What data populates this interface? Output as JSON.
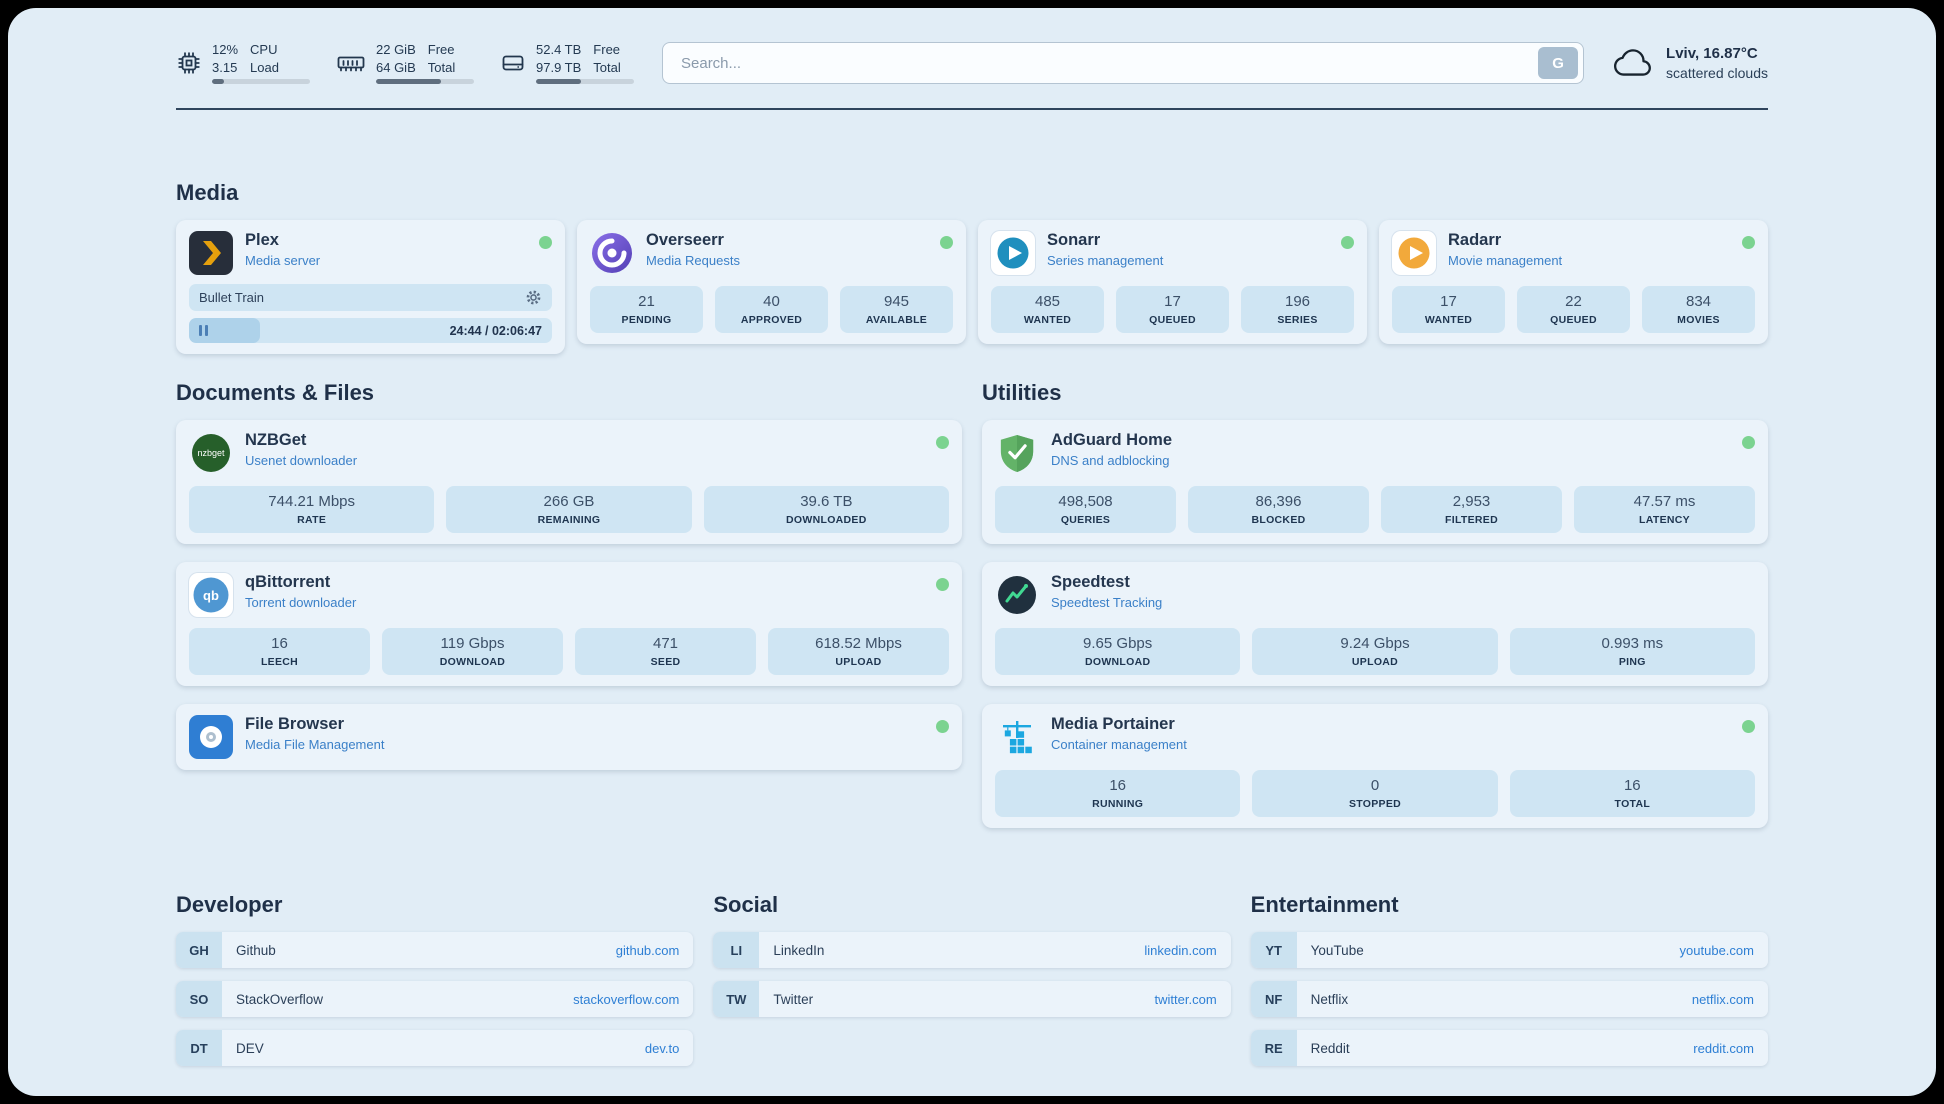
{
  "header": {
    "cpu": {
      "value": "12%",
      "load": "3.15",
      "label_top": "CPU",
      "label_bottom": "Load",
      "percent": 12
    },
    "memory": {
      "free": "22 GiB",
      "total": "64 GiB",
      "label_top": "Free",
      "label_bottom": "Total",
      "percent": 66
    },
    "disk": {
      "free": "52.4 TB",
      "total": "97.9 TB",
      "label_top": "Free",
      "label_bottom": "Total",
      "percent": 46
    },
    "search": {
      "placeholder": "Search...",
      "button_label": "G"
    },
    "weather": {
      "location": "Lviv, 16.87°C",
      "condition": "scattered clouds"
    }
  },
  "sections": {
    "media": {
      "title": "Media",
      "plex": {
        "name": "Plex",
        "subtitle": "Media server",
        "now_playing": "Bullet Train",
        "time": "24:44 / 02:06:47",
        "progress_percent": 19.5
      },
      "overseerr": {
        "name": "Overseerr",
        "subtitle": "Media Requests",
        "stats": [
          {
            "value": "21",
            "label": "PENDING"
          },
          {
            "value": "40",
            "label": "APPROVED"
          },
          {
            "value": "945",
            "label": "AVAILABLE"
          }
        ]
      },
      "sonarr": {
        "name": "Sonarr",
        "subtitle": "Series management",
        "stats": [
          {
            "value": "485",
            "label": "WANTED"
          },
          {
            "value": "17",
            "label": "QUEUED"
          },
          {
            "value": "196",
            "label": "SERIES"
          }
        ]
      },
      "radarr": {
        "name": "Radarr",
        "subtitle": "Movie management",
        "stats": [
          {
            "value": "17",
            "label": "WANTED"
          },
          {
            "value": "22",
            "label": "QUEUED"
          },
          {
            "value": "834",
            "label": "MOVIES"
          }
        ]
      }
    },
    "documents": {
      "title": "Documents & Files",
      "nzbget": {
        "name": "NZBGet",
        "subtitle": "Usenet downloader",
        "stats": [
          {
            "value": "744.21 Mbps",
            "label": "RATE"
          },
          {
            "value": "266 GB",
            "label": "REMAINING"
          },
          {
            "value": "39.6 TB",
            "label": "DOWNLOADED"
          }
        ]
      },
      "qbittorrent": {
        "name": "qBittorrent",
        "subtitle": "Torrent downloader",
        "stats": [
          {
            "value": "16",
            "label": "LEECH"
          },
          {
            "value": "119 Gbps",
            "label": "DOWNLOAD"
          },
          {
            "value": "471",
            "label": "SEED"
          },
          {
            "value": "618.52 Mbps",
            "label": "UPLOAD"
          }
        ]
      },
      "filebrowser": {
        "name": "File Browser",
        "subtitle": "Media File Management"
      }
    },
    "utilities": {
      "title": "Utilities",
      "adguard": {
        "name": "AdGuard Home",
        "subtitle": "DNS and adblocking",
        "stats": [
          {
            "value": "498,508",
            "label": "QUERIES"
          },
          {
            "value": "86,396",
            "label": "BLOCKED"
          },
          {
            "value": "2,953",
            "label": "FILTERED"
          },
          {
            "value": "47.57 ms",
            "label": "LATENCY"
          }
        ]
      },
      "speedtest": {
        "name": "Speedtest",
        "subtitle": "Speedtest Tracking",
        "stats": [
          {
            "value": "9.65 Gbps",
            "label": "DOWNLOAD"
          },
          {
            "value": "9.24 Gbps",
            "label": "UPLOAD"
          },
          {
            "value": "0.993 ms",
            "label": "PING"
          }
        ]
      },
      "portainer": {
        "name": "Media Portainer",
        "subtitle": "Container management",
        "stats": [
          {
            "value": "16",
            "label": "RUNNING"
          },
          {
            "value": "0",
            "label": "STOPPED"
          },
          {
            "value": "16",
            "label": "TOTAL"
          }
        ]
      }
    },
    "bookmarks": {
      "developer": {
        "title": "Developer",
        "items": [
          {
            "abbr": "GH",
            "label": "Github",
            "url": "github.com"
          },
          {
            "abbr": "SO",
            "label": "StackOverflow",
            "url": "stackoverflow.com"
          },
          {
            "abbr": "DT",
            "label": "DEV",
            "url": "dev.to"
          }
        ]
      },
      "social": {
        "title": "Social",
        "items": [
          {
            "abbr": "LI",
            "label": "LinkedIn",
            "url": "linkedin.com"
          },
          {
            "abbr": "TW",
            "label": "Twitter",
            "url": "twitter.com"
          }
        ]
      },
      "entertainment": {
        "title": "Entertainment",
        "items": [
          {
            "abbr": "YT",
            "label": "YouTube",
            "url": "youtube.com"
          },
          {
            "abbr": "NF",
            "label": "Netflix",
            "url": "netflix.com"
          },
          {
            "abbr": "RE",
            "label": "Reddit",
            "url": "reddit.com"
          }
        ]
      }
    }
  }
}
